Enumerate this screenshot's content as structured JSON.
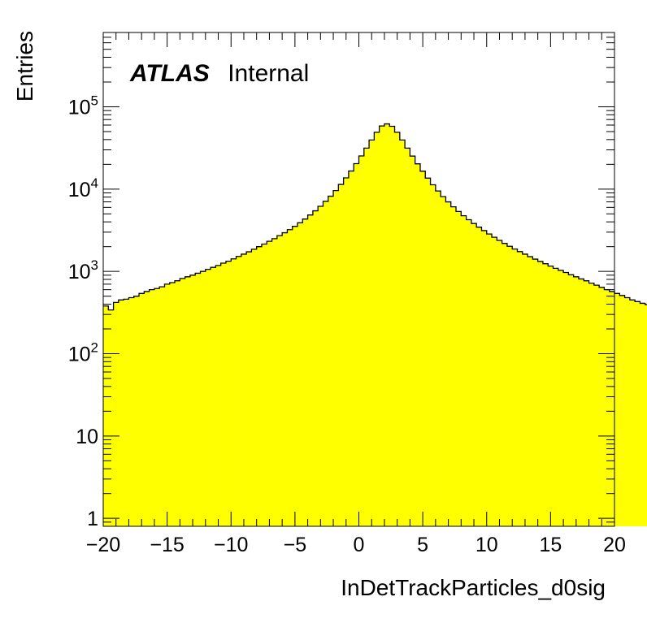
{
  "chart_data": {
    "type": "histogram",
    "title": "",
    "xlabel": "InDetTrackParticles_d0sig",
    "ylabel": "Entries",
    "xlim": [
      -20,
      20
    ],
    "ylim": [
      0.8,
      800000
    ],
    "y_scale": "log",
    "x_tick_labels": [
      "−20",
      "−15",
      "−10",
      "−5",
      "0",
      "5",
      "10",
      "15",
      "20"
    ],
    "y_tick_labels": [
      {
        "value": 1,
        "base": "1",
        "exp": ""
      },
      {
        "value": 10,
        "base": "10",
        "exp": ""
      },
      {
        "value": 100,
        "base": "10",
        "exp": "2"
      },
      {
        "value": 1000,
        "base": "10",
        "exp": "3"
      },
      {
        "value": 10000,
        "base": "10",
        "exp": "4"
      },
      {
        "value": 100000,
        "base": "10",
        "exp": "5"
      }
    ],
    "annotation": {
      "bold": "ATLAS",
      "plain": "Internal"
    },
    "fill_color": "#ffff00",
    "line_color": "#000000",
    "bin_edges_start": -20,
    "bin_width": 0.4,
    "bin_counts": [
      380,
      340,
      420,
      450,
      460,
      480,
      500,
      540,
      570,
      600,
      620,
      650,
      700,
      730,
      770,
      820,
      860,
      900,
      950,
      1000,
      1060,
      1120,
      1180,
      1260,
      1330,
      1420,
      1520,
      1620,
      1730,
      1860,
      2000,
      2150,
      2320,
      2500,
      2720,
      2950,
      3220,
      3530,
      3900,
      4330,
      4850,
      5450,
      6180,
      7100,
      8200,
      9600,
      11400,
      13700,
      16600,
      20400,
      25300,
      31500,
      39500,
      49000,
      58500,
      62000,
      58000,
      49000,
      39500,
      31500,
      25200,
      20300,
      16500,
      13600,
      11300,
      9500,
      8100,
      7000,
      6100,
      5350,
      4750,
      4250,
      3820,
      3450,
      3130,
      2850,
      2600,
      2380,
      2190,
      2020,
      1870,
      1740,
      1620,
      1510,
      1410,
      1320,
      1240,
      1160,
      1090,
      1030,
      970,
      910,
      860,
      810,
      770,
      720,
      680,
      640,
      600,
      570,
      540,
      510,
      480,
      450,
      430,
      410,
      395,
      380
    ]
  }
}
